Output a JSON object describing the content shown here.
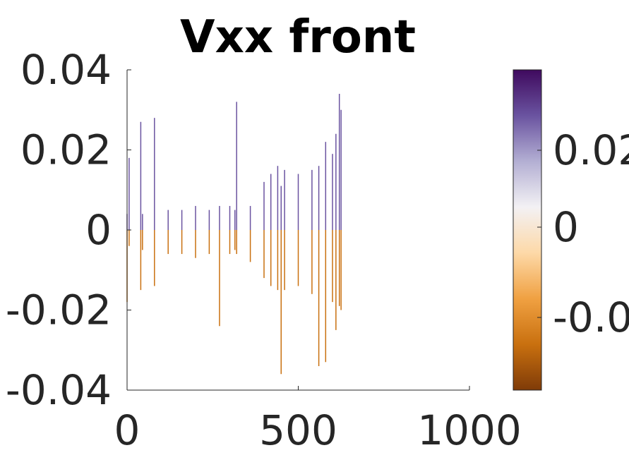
{
  "chart_data": {
    "type": "line",
    "title": "Vxx front",
    "xlabel": "",
    "ylabel": "",
    "xlim": [
      0,
      1000
    ],
    "ylim": [
      -0.04,
      0.04
    ],
    "x_ticks": [
      "0",
      "500",
      "1000"
    ],
    "y_ticks": [
      "0.04",
      "0.02",
      "0",
      "-0.02",
      "-0.04"
    ],
    "grid": false,
    "colorbar": {
      "ticks": [
        "0.02",
        "0",
        "-0.0"
      ],
      "colors_top_to_bottom": [
        "#3f0a5e",
        "#6a53a0",
        "#b3afd3",
        "#f3f1f4",
        "#fdd9a8",
        "#f0a142",
        "#c9700f",
        "#7f3b08"
      ]
    },
    "series": [
      {
        "x": [
          0,
          6,
          40,
          45,
          80,
          120,
          160,
          200,
          240,
          270,
          300,
          315,
          320,
          360,
          400,
          420,
          440,
          450,
          460,
          500,
          540,
          560,
          580,
          600,
          610,
          620,
          625
        ],
        "high": [
          0.004,
          0.018,
          0.027,
          0.004,
          0.028,
          0.005,
          0.005,
          0.006,
          0.005,
          0.006,
          0.006,
          0.005,
          0.032,
          0.006,
          0.012,
          0.014,
          0.016,
          0.011,
          0.015,
          0.014,
          0.015,
          0.016,
          0.022,
          0.019,
          0.024,
          0.034,
          0.03
        ],
        "low": [
          -0.018,
          -0.004,
          -0.015,
          -0.005,
          -0.014,
          -0.006,
          -0.006,
          -0.007,
          -0.006,
          -0.024,
          -0.006,
          -0.005,
          -0.006,
          -0.008,
          -0.012,
          -0.014,
          -0.015,
          -0.036,
          -0.015,
          -0.014,
          -0.016,
          -0.034,
          -0.033,
          -0.018,
          -0.025,
          -0.019,
          -0.02
        ]
      }
    ]
  }
}
